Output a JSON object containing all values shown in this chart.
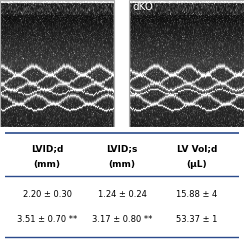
{
  "dKO_label": "dKO",
  "table_headers_line1": [
    "LVID;d",
    "LVID;s",
    "LV Vol;d"
  ],
  "table_headers_line2": [
    "(mm)",
    "(mm)",
    "(μL)"
  ],
  "row1": [
    "2.20 ± 0.30",
    "1.24 ± 0.24",
    "15.88 ± 4"
  ],
  "row2": [
    "3.51 ± 0.70 **",
    "3.17 ± 0.80 **",
    "53.37 ± 1"
  ],
  "line_color": "#2B4B8C",
  "bg_color": "#ffffff",
  "header_fontsize": 6.5,
  "data_fontsize": 6.0,
  "fig_bg": "#ffffff",
  "gap_color": "#ffffff",
  "border_color": "#cccccc",
  "echo_top_color": "#000000",
  "echo_mid_color": "#404040",
  "echo_bottom_color": "#888888"
}
